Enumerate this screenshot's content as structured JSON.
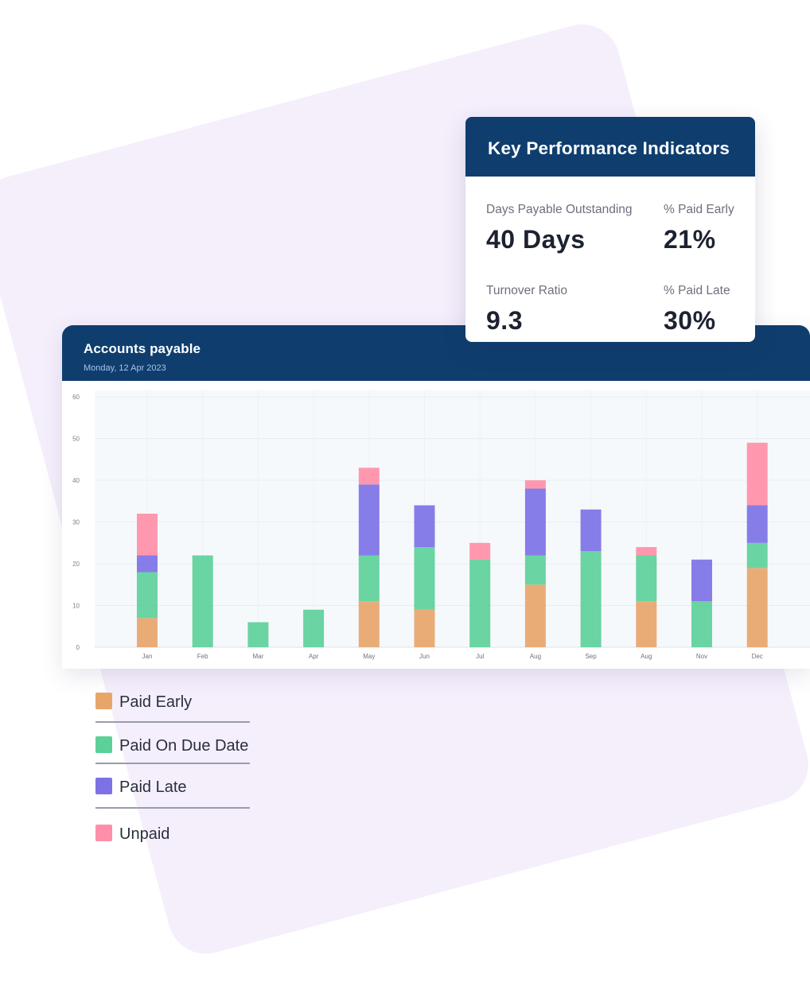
{
  "kpi": {
    "title": "Key Performance Indicators",
    "items": [
      {
        "label": "Days Payable Outstanding",
        "value": "40 Days"
      },
      {
        "label": "% Paid Early",
        "value": "21%"
      },
      {
        "label": "Turnover Ratio",
        "value": "9.3"
      },
      {
        "label": "% Paid Late",
        "value": "30%"
      }
    ]
  },
  "accounts_payable": {
    "title": "Accounts payable",
    "subtitle": "Monday, 12 Apr 2023"
  },
  "legend": {
    "items": [
      {
        "label": "Paid Early",
        "color": "#e8a56a"
      },
      {
        "label": "Paid On Due Date",
        "color": "#5dd09a"
      },
      {
        "label": "Paid Late",
        "color": "#7c72e6"
      },
      {
        "label": "Unpaid",
        "color": "#ff8fa8"
      }
    ]
  },
  "colors": {
    "header_navy": "#0f3e6e",
    "background_lavender": "#f5effc"
  },
  "chart_data": {
    "type": "bar",
    "stacked": true,
    "categories": [
      "Jan",
      "Feb",
      "Mar",
      "Apr",
      "May",
      "Jun",
      "Jul",
      "Aug",
      "Sep",
      "Aug",
      "Nov",
      "Dec"
    ],
    "series": [
      {
        "name": "Paid Early",
        "color": "#e8a56a",
        "values": [
          7,
          0,
          0,
          0,
          11,
          9,
          0,
          15,
          0,
          11,
          0,
          19
        ]
      },
      {
        "name": "Paid On Due Date",
        "color": "#5dd09a",
        "values": [
          11,
          22,
          6,
          9,
          11,
          15,
          21,
          7,
          23,
          11,
          11,
          6
        ]
      },
      {
        "name": "Paid Late",
        "color": "#7c72e6",
        "values": [
          4,
          0,
          0,
          0,
          17,
          10,
          0,
          16,
          10,
          0,
          10,
          9
        ]
      },
      {
        "name": "Unpaid",
        "color": "#ff8fa8",
        "values": [
          10,
          0,
          0,
          0,
          4,
          0,
          4,
          2,
          0,
          2,
          0,
          15
        ]
      }
    ],
    "yticks": [
      0,
      10,
      20,
      30,
      40,
      50,
      60
    ],
    "ylim": [
      0,
      60
    ],
    "grid": true
  }
}
